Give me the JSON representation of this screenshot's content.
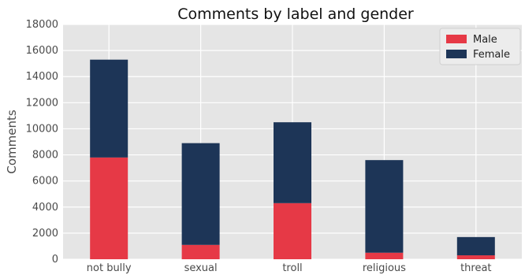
{
  "chart_data": {
    "type": "bar",
    "stacked": true,
    "title": "Comments by label and gender",
    "xlabel": "",
    "ylabel": "Comments",
    "categories": [
      "not bully",
      "sexual",
      "troll",
      "religious",
      "threat"
    ],
    "series": [
      {
        "name": "Male",
        "values": [
          7800,
          1100,
          4300,
          500,
          300
        ],
        "color": "#e63946"
      },
      {
        "name": "Female",
        "values": [
          7500,
          7800,
          6200,
          7100,
          1400
        ],
        "color": "#1d3557"
      }
    ],
    "ylim": [
      0,
      18000
    ],
    "yticks": [
      0,
      2000,
      4000,
      6000,
      8000,
      10000,
      12000,
      14000,
      16000,
      18000
    ],
    "grid": true,
    "legend_position": "top-right",
    "background": "#e5e5e5"
  }
}
